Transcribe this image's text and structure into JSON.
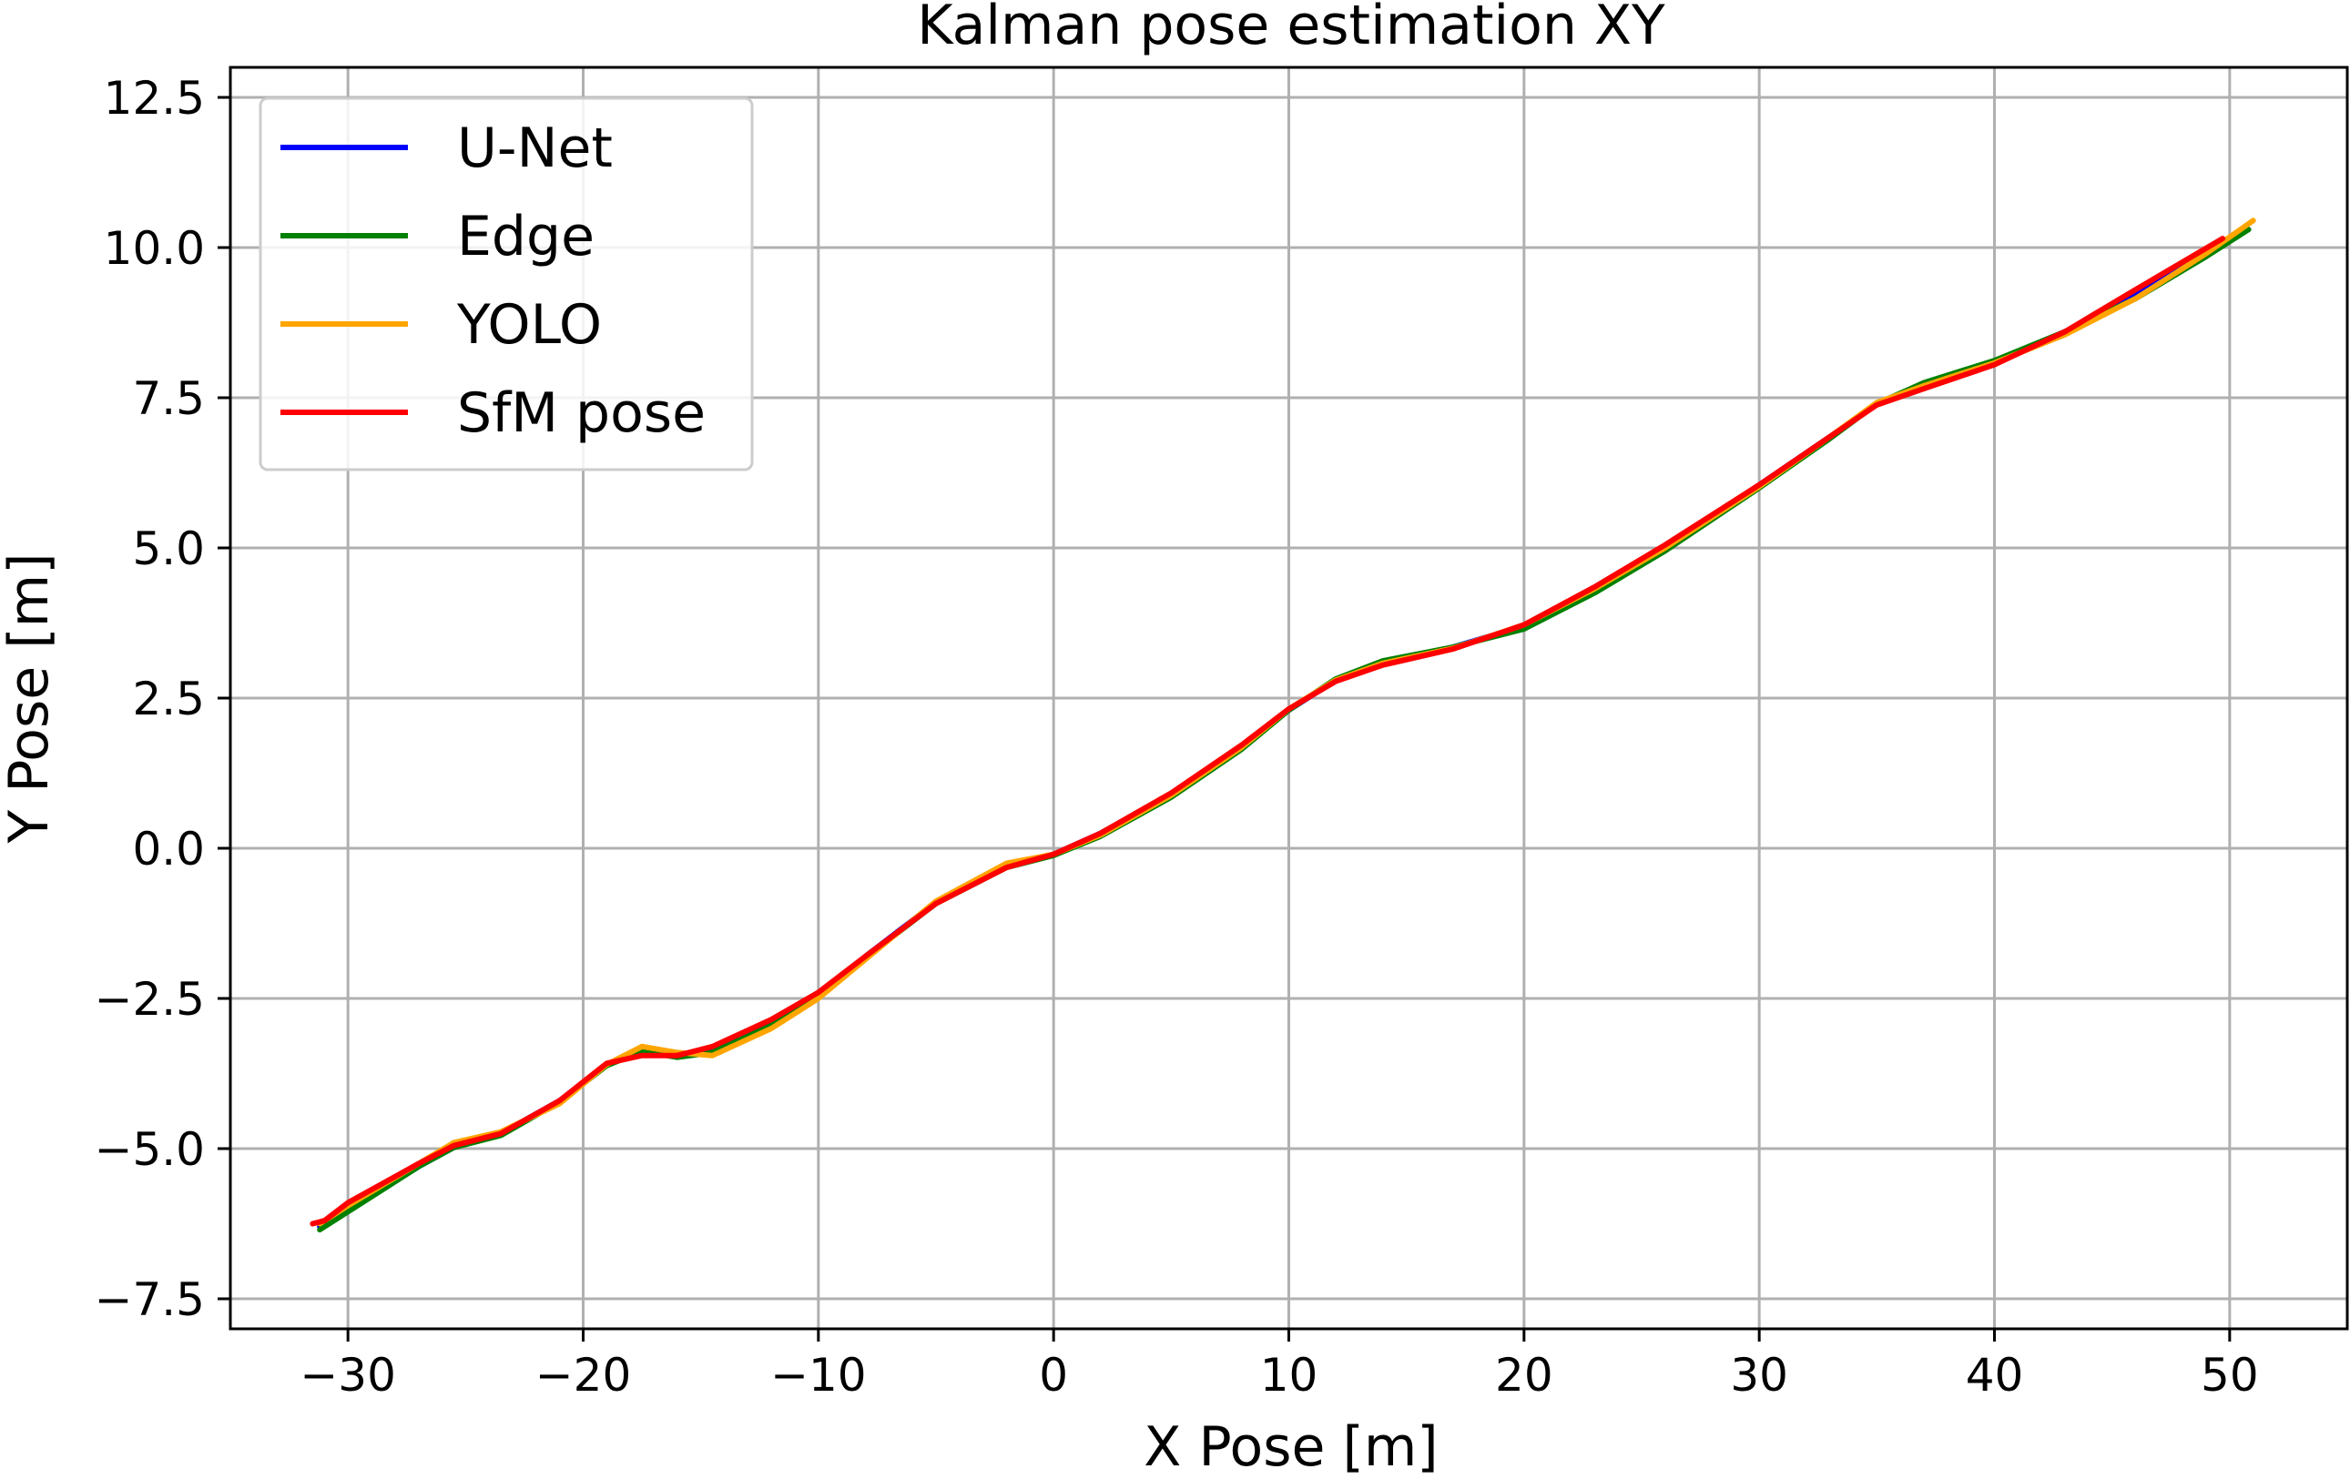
{
  "chart_data": {
    "type": "line",
    "title": "Kalman pose estimation XY",
    "xlabel": "X Pose [m]",
    "ylabel": "Y Pose [m]",
    "xlim": [
      -35,
      55
    ],
    "ylim": [
      -8,
      13
    ],
    "xticks": [
      -30,
      -20,
      -10,
      0,
      10,
      20,
      30,
      40,
      50
    ],
    "xtick_labels": [
      "−30",
      "−20",
      "−10",
      "0",
      "10",
      "20",
      "30",
      "40",
      "50"
    ],
    "yticks": [
      -7.5,
      -5.0,
      -2.5,
      0.0,
      2.5,
      5.0,
      7.5,
      10.0,
      12.5
    ],
    "ytick_labels": [
      "−7.5",
      "−5.0",
      "−2.5",
      "0.0",
      "2.5",
      "5.0",
      "7.5",
      "10.0",
      "12.5"
    ],
    "grid": true,
    "legend_position": "top-left",
    "series": [
      {
        "name": "U-Net",
        "color": "#0000ff",
        "x": [
          -31.2,
          -30.0,
          -27.0,
          -25.5,
          -23.5,
          -21.0,
          -19.0,
          -17.5,
          -16.0,
          -14.5,
          -12.0,
          -10.0,
          -8.0,
          -5.0,
          -2.0,
          0.0,
          2.0,
          5.0,
          8.0,
          10.0,
          12.0,
          14.0,
          17.0,
          20.0,
          23.0,
          26.0,
          30.0,
          33.0,
          35.0,
          37.0,
          40.0,
          43.0,
          46.0,
          49.0,
          50.8
        ],
        "y": [
          -6.3,
          -6.0,
          -5.3,
          -4.98,
          -4.75,
          -4.2,
          -3.6,
          -3.4,
          -3.45,
          -3.35,
          -2.9,
          -2.45,
          -1.8,
          -0.9,
          -0.3,
          -0.1,
          0.25,
          0.9,
          1.7,
          2.3,
          2.8,
          3.1,
          3.35,
          3.7,
          4.3,
          5.0,
          6.05,
          6.85,
          7.4,
          7.7,
          8.1,
          8.6,
          9.2,
          9.9,
          10.3
        ]
      },
      {
        "name": "Edge",
        "color": "#008000",
        "x": [
          -31.2,
          -30.0,
          -27.0,
          -25.5,
          -23.5,
          -21.0,
          -19.0,
          -17.5,
          -16.0,
          -14.5,
          -12.0,
          -10.0,
          -8.0,
          -5.0,
          -2.0,
          0.0,
          2.0,
          5.0,
          8.0,
          10.0,
          12.0,
          14.0,
          17.0,
          20.0,
          23.0,
          26.0,
          30.0,
          33.0,
          35.0,
          37.0,
          40.0,
          43.0,
          46.0,
          49.0,
          50.8
        ],
        "y": [
          -6.35,
          -6.05,
          -5.3,
          -4.98,
          -4.78,
          -4.22,
          -3.62,
          -3.38,
          -3.48,
          -3.4,
          -2.95,
          -2.45,
          -1.82,
          -0.92,
          -0.32,
          -0.12,
          0.2,
          0.85,
          1.65,
          2.3,
          2.82,
          3.12,
          3.35,
          3.65,
          4.25,
          4.95,
          6.0,
          6.82,
          7.4,
          7.75,
          8.12,
          8.6,
          9.15,
          9.85,
          10.3
        ]
      },
      {
        "name": "YOLO",
        "color": "#ffa500",
        "x": [
          -31.2,
          -30.0,
          -27.0,
          -25.5,
          -23.5,
          -21.0,
          -19.0,
          -17.5,
          -16.0,
          -14.5,
          -12.0,
          -10.0,
          -8.0,
          -5.0,
          -2.0,
          0.0,
          2.0,
          5.0,
          8.0,
          10.0,
          12.0,
          14.0,
          17.0,
          20.0,
          23.0,
          26.0,
          30.0,
          33.0,
          35.0,
          37.0,
          40.0,
          43.0,
          46.0,
          49.0,
          51.0
        ],
        "y": [
          -6.25,
          -5.95,
          -5.25,
          -4.9,
          -4.72,
          -4.25,
          -3.6,
          -3.3,
          -3.4,
          -3.45,
          -3.0,
          -2.5,
          -1.85,
          -0.88,
          -0.25,
          -0.1,
          0.22,
          0.88,
          1.68,
          2.32,
          2.8,
          3.08,
          3.33,
          3.72,
          4.32,
          5.0,
          6.02,
          6.85,
          7.42,
          7.7,
          8.08,
          8.55,
          9.15,
          9.9,
          10.45
        ]
      },
      {
        "name": "SfM pose",
        "color": "#ff0000",
        "x": [
          -31.5,
          -31.0,
          -30.0,
          -27.0,
          -25.5,
          -23.5,
          -21.0,
          -19.0,
          -17.5,
          -16.0,
          -14.5,
          -12.0,
          -10.0,
          -8.0,
          -5.0,
          -2.0,
          0.0,
          2.0,
          5.0,
          8.0,
          10.0,
          12.0,
          14.0,
          17.0,
          20.0,
          23.0,
          26.0,
          30.0,
          33.0,
          35.0,
          37.0,
          40.0,
          43.0,
          46.0,
          49.7
        ],
        "y": [
          -6.25,
          -6.2,
          -5.9,
          -5.25,
          -4.95,
          -4.75,
          -4.2,
          -3.58,
          -3.45,
          -3.45,
          -3.3,
          -2.85,
          -2.4,
          -1.8,
          -0.92,
          -0.32,
          -0.1,
          0.25,
          0.92,
          1.72,
          2.32,
          2.78,
          3.05,
          3.32,
          3.72,
          4.35,
          5.05,
          6.05,
          6.85,
          7.38,
          7.65,
          8.05,
          8.6,
          9.3,
          10.15
        ]
      }
    ]
  }
}
